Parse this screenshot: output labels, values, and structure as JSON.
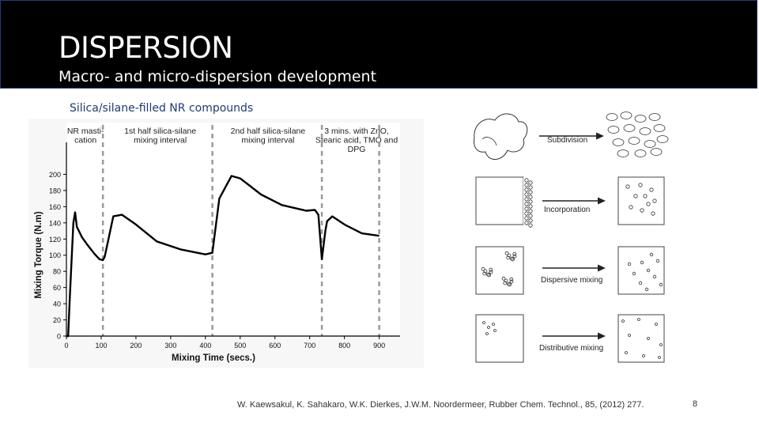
{
  "slide": {
    "title": "DISPERSION",
    "subtitle": "Macro- and micro-dispersion development",
    "section_label": "Silica/silane-filled NR compounds",
    "citation": "W. Kaewsakul, K. Sahakaro, W.K. Dierkes, J.W.M. Noordermeer, Rubber Chem. Technol., 85, (2012) 277.",
    "page_number": "8"
  },
  "chart_data": {
    "type": "line",
    "xlabel": "Mixing Time (secs.)",
    "ylabel": "Mixing Torque (N.m)",
    "xlim": [
      0,
      960
    ],
    "ylim": [
      0,
      220
    ],
    "x_ticks": [
      "0",
      "100",
      "200",
      "300",
      "400",
      "500",
      "600",
      "700",
      "800",
      "900"
    ],
    "y_ticks": [
      "0",
      "20",
      "40",
      "60",
      "80",
      "100",
      "120",
      "140",
      "160",
      "180",
      "200"
    ],
    "phases": [
      {
        "label_lines": [
          "NR masti-",
          "cation"
        ],
        "x_center": 55
      },
      {
        "label_lines": [
          "1st half silica-silane",
          "mixing interval"
        ],
        "x_center": 270
      },
      {
        "label_lines": [
          "2nd half silica-silane",
          "mixing interval"
        ],
        "x_center": 580
      },
      {
        "label_lines": [
          "3 mins. with ZnO,",
          "Stearic acid, TMQ and",
          "DPG"
        ],
        "x_center": 835
      }
    ],
    "phase_boundaries": [
      105,
      420,
      735,
      900
    ],
    "series": [
      {
        "x": [
          0,
          5,
          10,
          20,
          25,
          30,
          45,
          60,
          80,
          95,
          105,
          110,
          120,
          135,
          160,
          200,
          260,
          330,
          400,
          420,
          440,
          475,
          500,
          560,
          620,
          690,
          715,
          725,
          735,
          745,
          750,
          765,
          800,
          850,
          900
        ],
        "y": [
          0,
          0,
          50,
          140,
          153,
          135,
          122,
          113,
          102,
          95,
          94,
          98,
          118,
          148,
          150,
          138,
          117,
          107,
          101,
          103,
          170,
          198,
          195,
          175,
          162,
          155,
          156,
          150,
          95,
          130,
          142,
          148,
          138,
          127,
          124
        ]
      }
    ]
  },
  "schematic": {
    "rows": [
      {
        "label": "Subdivision"
      },
      {
        "label": "Incorporation"
      },
      {
        "label": "Dispersive mixing"
      },
      {
        "label": "Distributive mixing"
      }
    ]
  }
}
